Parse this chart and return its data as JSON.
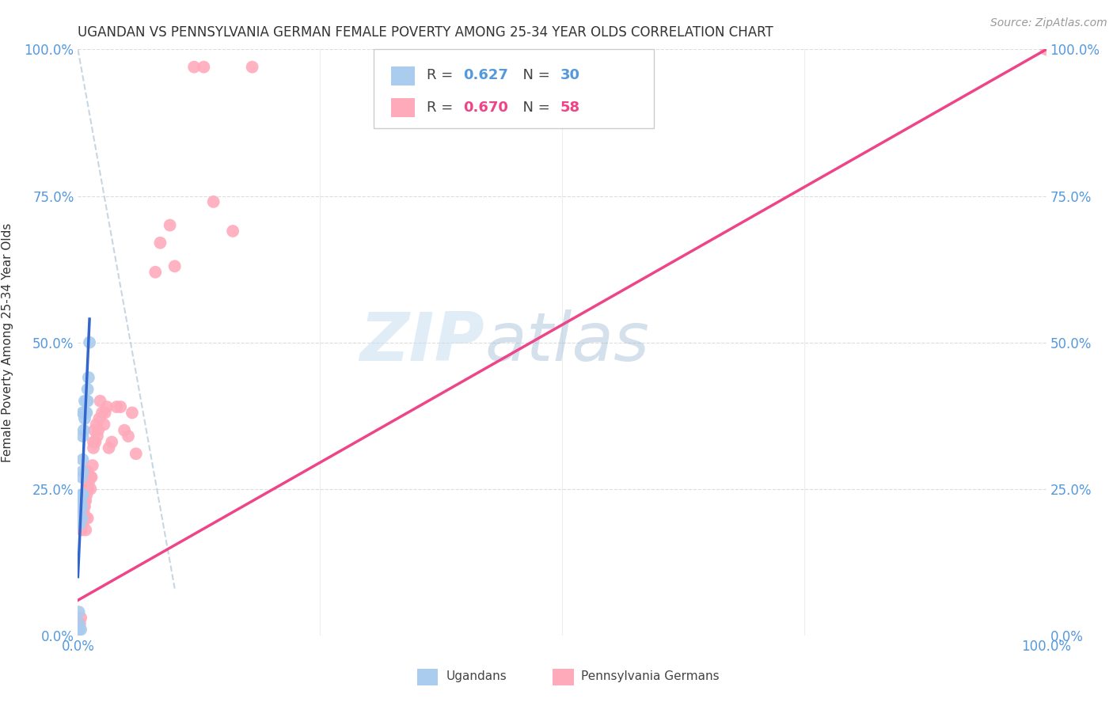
{
  "title": "UGANDAN VS PENNSYLVANIA GERMAN FEMALE POVERTY AMONG 25-34 YEAR OLDS CORRELATION CHART",
  "source": "Source: ZipAtlas.com",
  "ylabel": "Female Poverty Among 25-34 Year Olds",
  "xlim": [
    0,
    1.0
  ],
  "ylim": [
    0,
    1.0
  ],
  "xtick_positions": [
    0.0,
    1.0
  ],
  "xtick_labels": [
    "0.0%",
    "100.0%"
  ],
  "ytick_positions": [
    0.0,
    0.25,
    0.5,
    0.75,
    1.0
  ],
  "ytick_labels": [
    "0.0%",
    "25.0%",
    "50.0%",
    "75.0%",
    "100.0%"
  ],
  "watermark_zip": "ZIP",
  "watermark_atlas": "atlas",
  "legend_r1": "0.627",
  "legend_n1": "30",
  "legend_r2": "0.670",
  "legend_n2": "58",
  "color_ugandan": "#aaccee",
  "color_pa_german": "#ffaabb",
  "color_ugandan_line": "#3366cc",
  "color_pa_german_line": "#ee4488",
  "color_dashed_line": "#bbccdd",
  "title_color": "#333333",
  "tick_color": "#5599dd",
  "source_color": "#999999",
  "grid_color": "#dddddd",
  "background_color": "#ffffff",
  "ugandan_x": [
    0.001,
    0.001,
    0.002,
    0.002,
    0.002,
    0.003,
    0.003,
    0.003,
    0.004,
    0.004,
    0.004,
    0.004,
    0.005,
    0.005,
    0.005,
    0.005,
    0.005,
    0.006,
    0.006,
    0.007,
    0.007,
    0.008,
    0.009,
    0.009,
    0.01,
    0.01,
    0.011,
    0.012,
    0.001,
    0.003
  ],
  "ugandan_y": [
    0.02,
    0.04,
    0.19,
    0.21,
    0.22,
    0.2,
    0.22,
    0.23,
    0.2,
    0.22,
    0.24,
    0.27,
    0.24,
    0.28,
    0.3,
    0.34,
    0.38,
    0.35,
    0.38,
    0.37,
    0.4,
    0.38,
    0.38,
    0.4,
    0.4,
    0.42,
    0.44,
    0.5,
    0.01,
    0.01
  ],
  "pa_german_x": [
    0.001,
    0.002,
    0.003,
    0.004,
    0.004,
    0.005,
    0.005,
    0.005,
    0.006,
    0.006,
    0.007,
    0.007,
    0.008,
    0.008,
    0.008,
    0.009,
    0.009,
    0.01,
    0.01,
    0.01,
    0.011,
    0.011,
    0.012,
    0.013,
    0.013,
    0.014,
    0.015,
    0.016,
    0.016,
    0.017,
    0.018,
    0.019,
    0.02,
    0.021,
    0.022,
    0.023,
    0.025,
    0.027,
    0.028,
    0.03,
    0.032,
    0.035,
    0.04,
    0.044,
    0.048,
    0.052,
    0.056,
    0.06,
    0.08,
    0.085,
    0.095,
    0.1,
    0.12,
    0.13,
    0.14,
    0.16,
    0.18,
    1.0
  ],
  "pa_german_y": [
    0.01,
    0.02,
    0.03,
    0.18,
    0.19,
    0.19,
    0.21,
    0.22,
    0.21,
    0.22,
    0.22,
    0.23,
    0.18,
    0.2,
    0.23,
    0.28,
    0.24,
    0.2,
    0.25,
    0.28,
    0.27,
    0.26,
    0.27,
    0.25,
    0.27,
    0.27,
    0.29,
    0.32,
    0.33,
    0.35,
    0.33,
    0.36,
    0.34,
    0.35,
    0.37,
    0.4,
    0.38,
    0.36,
    0.38,
    0.39,
    0.32,
    0.33,
    0.39,
    0.39,
    0.35,
    0.34,
    0.38,
    0.31,
    0.62,
    0.67,
    0.7,
    0.63,
    0.97,
    0.97,
    0.74,
    0.69,
    0.97,
    1.0
  ],
  "ug_line_x": [
    0.0,
    0.012
  ],
  "ug_line_y": [
    0.1,
    0.54
  ],
  "pa_line_x": [
    0.0,
    1.0
  ],
  "pa_line_y": [
    0.06,
    1.0
  ],
  "dash_line_x": [
    0.0,
    0.1
  ],
  "dash_line_y": [
    1.0,
    0.08
  ]
}
